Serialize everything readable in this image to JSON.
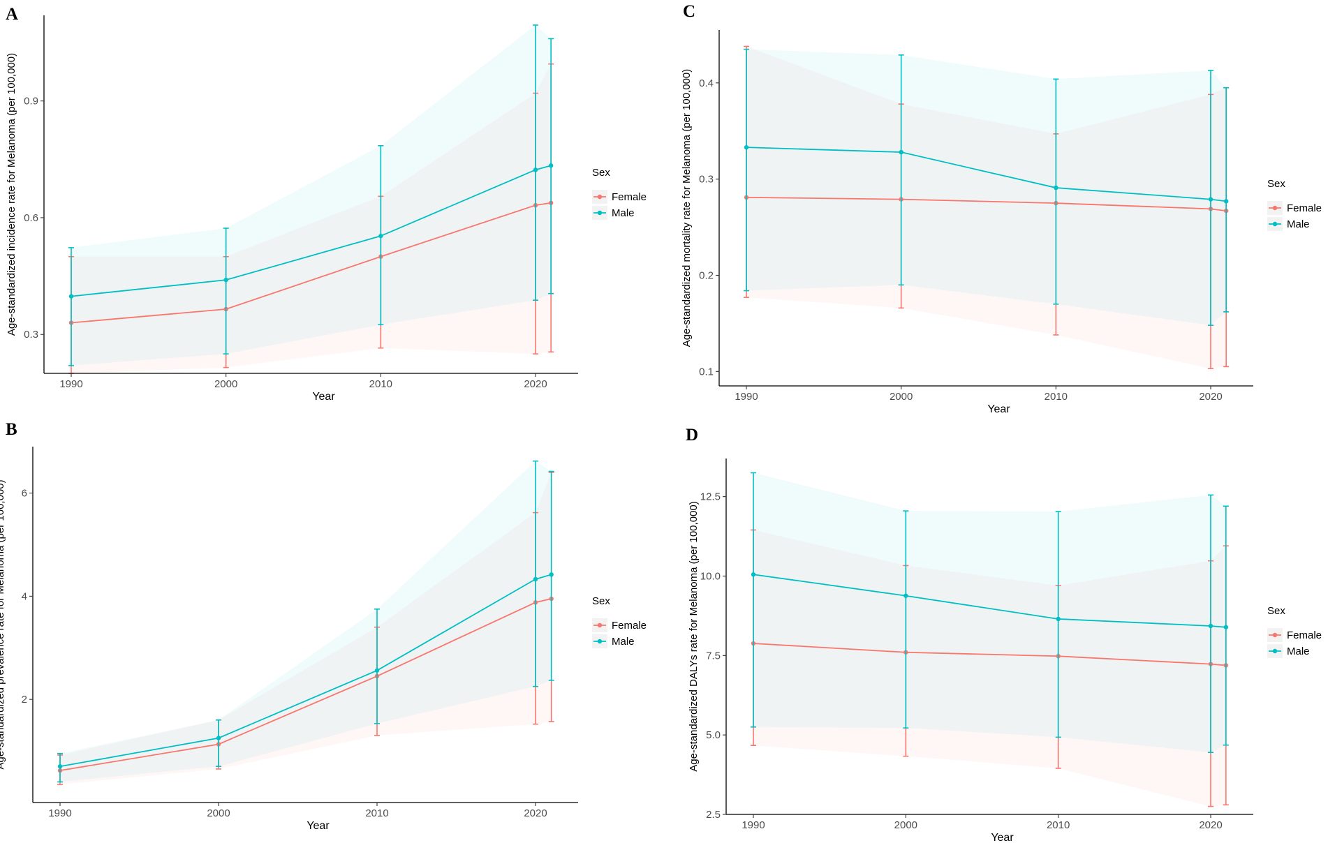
{
  "chart_data": [
    {
      "type": "line",
      "panel": "A",
      "title": "",
      "xlabel": "Year",
      "ylabel": "Age-standardized incidence rate for Melanoma (per 100,000)",
      "x": [
        1990,
        2000,
        2010,
        2020,
        2021
      ],
      "xticks": [
        1990,
        2000,
        2010,
        2020
      ],
      "xlim": [
        1988,
        2025
      ],
      "yticks": [
        0.3,
        0.6,
        0.9
      ],
      "ylim": [
        0.2,
        1.12
      ],
      "legend_title": "Sex",
      "legend_position": "right",
      "grid": false,
      "series": [
        {
          "name": "Female",
          "color": "#F8766D",
          "values": [
            0.33,
            0.365,
            0.5,
            0.632,
            0.638
          ],
          "lower": [
            0.2,
            0.215,
            0.265,
            0.25,
            0.255
          ],
          "upper": [
            0.5,
            0.5,
            0.655,
            0.92,
            0.995
          ]
        },
        {
          "name": "Male",
          "color": "#00BFC4",
          "values": [
            0.398,
            0.44,
            0.553,
            0.723,
            0.734
          ],
          "lower": [
            0.22,
            0.25,
            0.325,
            0.388,
            0.405
          ],
          "upper": [
            0.523,
            0.573,
            0.785,
            1.095,
            1.06
          ]
        }
      ]
    },
    {
      "type": "line",
      "panel": "B",
      "title": "",
      "xlabel": "Year",
      "ylabel": "Age-standardized prevalence rate for Melanoma (per 100,000)",
      "x": [
        1990,
        2000,
        2010,
        2020,
        2021
      ],
      "xticks": [
        1990,
        2000,
        2010,
        2020
      ],
      "xlim": [
        1988,
        2025
      ],
      "yticks": [
        2,
        4,
        6
      ],
      "ylim": [
        0,
        6.9
      ],
      "legend_title": "Sex",
      "legend_position": "right",
      "grid": false,
      "series": [
        {
          "name": "Female",
          "color": "#F8766D",
          "values": [
            0.62,
            1.13,
            2.45,
            3.88,
            3.95
          ],
          "lower": [
            0.35,
            0.65,
            1.3,
            1.52,
            1.57
          ],
          "upper": [
            0.92,
            1.6,
            3.4,
            5.62,
            6.4
          ]
        },
        {
          "name": "Male",
          "color": "#00BFC4",
          "values": [
            0.7,
            1.25,
            2.56,
            4.33,
            4.42
          ],
          "lower": [
            0.4,
            0.7,
            1.53,
            2.25,
            2.37
          ],
          "upper": [
            0.95,
            1.6,
            3.75,
            6.62,
            6.42
          ]
        }
      ]
    },
    {
      "type": "line",
      "panel": "C",
      "title": "",
      "xlabel": "Year",
      "ylabel": "Age-standardized mortality rate for Melanoma (per 100,000)",
      "x": [
        1990,
        2000,
        2010,
        2020,
        2021
      ],
      "xticks": [
        1990,
        2000,
        2010,
        2020
      ],
      "xlim": [
        1988,
        2025
      ],
      "yticks": [
        0.1,
        0.2,
        0.3,
        0.4
      ],
      "ylim": [
        0.085,
        0.455
      ],
      "legend_title": "Sex",
      "legend_position": "right",
      "grid": false,
      "series": [
        {
          "name": "Female",
          "color": "#F8766D",
          "values": [
            0.281,
            0.279,
            0.275,
            0.269,
            0.267
          ],
          "lower": [
            0.177,
            0.166,
            0.138,
            0.103,
            0.105
          ],
          "upper": [
            0.438,
            0.378,
            0.347,
            0.388,
            0.395
          ]
        },
        {
          "name": "Male",
          "color": "#00BFC4",
          "values": [
            0.333,
            0.328,
            0.291,
            0.279,
            0.277
          ],
          "lower": [
            0.184,
            0.19,
            0.17,
            0.148,
            0.162
          ],
          "upper": [
            0.435,
            0.429,
            0.404,
            0.413,
            0.395
          ]
        }
      ]
    },
    {
      "type": "line",
      "panel": "D",
      "title": "",
      "xlabel": "Year",
      "ylabel": "Age-standardized DALYs rate for Melanoma (per 100,000)",
      "x": [
        1990,
        2000,
        2010,
        2020,
        2021
      ],
      "xticks": [
        1990,
        2000,
        2010,
        2020
      ],
      "xlim": [
        1988,
        2025
      ],
      "yticks": [
        2.5,
        5.0,
        7.5,
        10.0,
        12.5
      ],
      "yticklabels": [
        "2.5",
        "5.0",
        "7.5",
        "10.0",
        "12.5"
      ],
      "ylim": [
        2.5,
        13.7
      ],
      "legend_title": "Sex",
      "legend_position": "right",
      "grid": false,
      "series": [
        {
          "name": "Female",
          "color": "#F8766D",
          "values": [
            7.88,
            7.6,
            7.48,
            7.23,
            7.19
          ],
          "lower": [
            4.67,
            4.33,
            3.95,
            2.75,
            2.8
          ],
          "upper": [
            11.45,
            10.33,
            9.7,
            10.48,
            10.95
          ]
        },
        {
          "name": "Male",
          "color": "#00BFC4",
          "values": [
            10.05,
            9.38,
            8.65,
            8.43,
            8.39
          ],
          "lower": [
            5.25,
            5.22,
            4.93,
            4.45,
            4.68
          ],
          "upper": [
            13.25,
            12.05,
            12.03,
            12.55,
            12.2
          ]
        }
      ]
    }
  ]
}
